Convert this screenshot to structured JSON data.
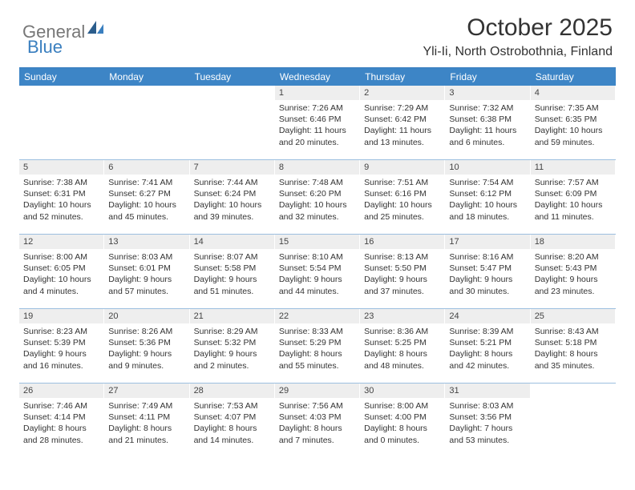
{
  "logo": {
    "text1": "General",
    "text2": "Blue"
  },
  "header": {
    "title": "October 2025",
    "location": "Yli-Ii, North Ostrobothnia, Finland"
  },
  "colors": {
    "header_bg": "#3d85c6",
    "header_text": "#ffffff",
    "daynum_bg": "#eeeeee",
    "divider": "#3a7fbf",
    "text": "#333333",
    "logo_gray": "#777777",
    "logo_blue": "#3a7fbf"
  },
  "day_names": [
    "Sunday",
    "Monday",
    "Tuesday",
    "Wednesday",
    "Thursday",
    "Friday",
    "Saturday"
  ],
  "weeks": [
    [
      {
        "n": "",
        "empty": true
      },
      {
        "n": "",
        "empty": true
      },
      {
        "n": "",
        "empty": true
      },
      {
        "n": "1",
        "sr": "Sunrise: 7:26 AM",
        "ss": "Sunset: 6:46 PM",
        "d1": "Daylight: 11 hours",
        "d2": "and 20 minutes."
      },
      {
        "n": "2",
        "sr": "Sunrise: 7:29 AM",
        "ss": "Sunset: 6:42 PM",
        "d1": "Daylight: 11 hours",
        "d2": "and 13 minutes."
      },
      {
        "n": "3",
        "sr": "Sunrise: 7:32 AM",
        "ss": "Sunset: 6:38 PM",
        "d1": "Daylight: 11 hours",
        "d2": "and 6 minutes."
      },
      {
        "n": "4",
        "sr": "Sunrise: 7:35 AM",
        "ss": "Sunset: 6:35 PM",
        "d1": "Daylight: 10 hours",
        "d2": "and 59 minutes."
      }
    ],
    [
      {
        "n": "5",
        "sr": "Sunrise: 7:38 AM",
        "ss": "Sunset: 6:31 PM",
        "d1": "Daylight: 10 hours",
        "d2": "and 52 minutes."
      },
      {
        "n": "6",
        "sr": "Sunrise: 7:41 AM",
        "ss": "Sunset: 6:27 PM",
        "d1": "Daylight: 10 hours",
        "d2": "and 45 minutes."
      },
      {
        "n": "7",
        "sr": "Sunrise: 7:44 AM",
        "ss": "Sunset: 6:24 PM",
        "d1": "Daylight: 10 hours",
        "d2": "and 39 minutes."
      },
      {
        "n": "8",
        "sr": "Sunrise: 7:48 AM",
        "ss": "Sunset: 6:20 PM",
        "d1": "Daylight: 10 hours",
        "d2": "and 32 minutes."
      },
      {
        "n": "9",
        "sr": "Sunrise: 7:51 AM",
        "ss": "Sunset: 6:16 PM",
        "d1": "Daylight: 10 hours",
        "d2": "and 25 minutes."
      },
      {
        "n": "10",
        "sr": "Sunrise: 7:54 AM",
        "ss": "Sunset: 6:12 PM",
        "d1": "Daylight: 10 hours",
        "d2": "and 18 minutes."
      },
      {
        "n": "11",
        "sr": "Sunrise: 7:57 AM",
        "ss": "Sunset: 6:09 PM",
        "d1": "Daylight: 10 hours",
        "d2": "and 11 minutes."
      }
    ],
    [
      {
        "n": "12",
        "sr": "Sunrise: 8:00 AM",
        "ss": "Sunset: 6:05 PM",
        "d1": "Daylight: 10 hours",
        "d2": "and 4 minutes."
      },
      {
        "n": "13",
        "sr": "Sunrise: 8:03 AM",
        "ss": "Sunset: 6:01 PM",
        "d1": "Daylight: 9 hours",
        "d2": "and 57 minutes."
      },
      {
        "n": "14",
        "sr": "Sunrise: 8:07 AM",
        "ss": "Sunset: 5:58 PM",
        "d1": "Daylight: 9 hours",
        "d2": "and 51 minutes."
      },
      {
        "n": "15",
        "sr": "Sunrise: 8:10 AM",
        "ss": "Sunset: 5:54 PM",
        "d1": "Daylight: 9 hours",
        "d2": "and 44 minutes."
      },
      {
        "n": "16",
        "sr": "Sunrise: 8:13 AM",
        "ss": "Sunset: 5:50 PM",
        "d1": "Daylight: 9 hours",
        "d2": "and 37 minutes."
      },
      {
        "n": "17",
        "sr": "Sunrise: 8:16 AM",
        "ss": "Sunset: 5:47 PM",
        "d1": "Daylight: 9 hours",
        "d2": "and 30 minutes."
      },
      {
        "n": "18",
        "sr": "Sunrise: 8:20 AM",
        "ss": "Sunset: 5:43 PM",
        "d1": "Daylight: 9 hours",
        "d2": "and 23 minutes."
      }
    ],
    [
      {
        "n": "19",
        "sr": "Sunrise: 8:23 AM",
        "ss": "Sunset: 5:39 PM",
        "d1": "Daylight: 9 hours",
        "d2": "and 16 minutes."
      },
      {
        "n": "20",
        "sr": "Sunrise: 8:26 AM",
        "ss": "Sunset: 5:36 PM",
        "d1": "Daylight: 9 hours",
        "d2": "and 9 minutes."
      },
      {
        "n": "21",
        "sr": "Sunrise: 8:29 AM",
        "ss": "Sunset: 5:32 PM",
        "d1": "Daylight: 9 hours",
        "d2": "and 2 minutes."
      },
      {
        "n": "22",
        "sr": "Sunrise: 8:33 AM",
        "ss": "Sunset: 5:29 PM",
        "d1": "Daylight: 8 hours",
        "d2": "and 55 minutes."
      },
      {
        "n": "23",
        "sr": "Sunrise: 8:36 AM",
        "ss": "Sunset: 5:25 PM",
        "d1": "Daylight: 8 hours",
        "d2": "and 48 minutes."
      },
      {
        "n": "24",
        "sr": "Sunrise: 8:39 AM",
        "ss": "Sunset: 5:21 PM",
        "d1": "Daylight: 8 hours",
        "d2": "and 42 minutes."
      },
      {
        "n": "25",
        "sr": "Sunrise: 8:43 AM",
        "ss": "Sunset: 5:18 PM",
        "d1": "Daylight: 8 hours",
        "d2": "and 35 minutes."
      }
    ],
    [
      {
        "n": "26",
        "sr": "Sunrise: 7:46 AM",
        "ss": "Sunset: 4:14 PM",
        "d1": "Daylight: 8 hours",
        "d2": "and 28 minutes."
      },
      {
        "n": "27",
        "sr": "Sunrise: 7:49 AM",
        "ss": "Sunset: 4:11 PM",
        "d1": "Daylight: 8 hours",
        "d2": "and 21 minutes."
      },
      {
        "n": "28",
        "sr": "Sunrise: 7:53 AM",
        "ss": "Sunset: 4:07 PM",
        "d1": "Daylight: 8 hours",
        "d2": "and 14 minutes."
      },
      {
        "n": "29",
        "sr": "Sunrise: 7:56 AM",
        "ss": "Sunset: 4:03 PM",
        "d1": "Daylight: 8 hours",
        "d2": "and 7 minutes."
      },
      {
        "n": "30",
        "sr": "Sunrise: 8:00 AM",
        "ss": "Sunset: 4:00 PM",
        "d1": "Daylight: 8 hours",
        "d2": "and 0 minutes."
      },
      {
        "n": "31",
        "sr": "Sunrise: 8:03 AM",
        "ss": "Sunset: 3:56 PM",
        "d1": "Daylight: 7 hours",
        "d2": "and 53 minutes."
      },
      {
        "n": "",
        "empty": true
      }
    ]
  ]
}
